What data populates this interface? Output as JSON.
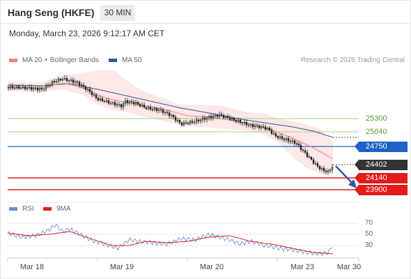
{
  "header": {
    "title": "Hang Seng (HKFE)",
    "interval": "30 MIN"
  },
  "datetime": "Monday, March 23, 2026 9:12:17 AM CET",
  "legend": {
    "bollinger": {
      "label": "MA 20 + Bollinger Bands",
      "color": "#f08080"
    },
    "ma50": {
      "label": "MA 50",
      "color": "#2d5aa0"
    }
  },
  "credit": "Research © 2026 Trading Central",
  "levels": {
    "resistance2": "25300",
    "resistance1": "25040",
    "pivot": "24750",
    "last": "24402",
    "support1": "24140",
    "support2": "23900"
  },
  "rsi_legend": {
    "rsi": "RSI",
    "ma": "9MA",
    "rsi_color": "#6e8fd8",
    "ma_color": "#e31b1b"
  },
  "rsi_ticks": [
    "70",
    "50",
    "30"
  ],
  "x_axis": [
    "Mar 18",
    "Mar 19",
    "Mar 20",
    "Mar 23",
    "Mar 30"
  ],
  "icons": {
    "forecast": "down-arrow-icon"
  }
}
